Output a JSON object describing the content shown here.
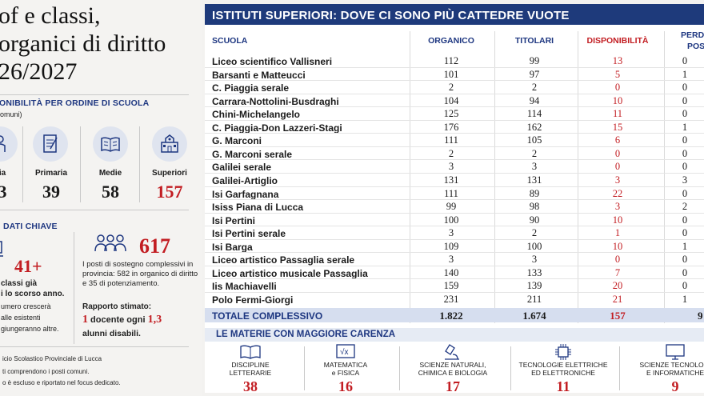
{
  "left": {
    "title_lines": [
      "of e classi,",
      " organici di diritto",
      "26/2027"
    ],
    "disp_header": "ONIBILITÀ PER ORDINE DI SCUOLA",
    "disp_sub": "omuni)",
    "categories": [
      {
        "label": "ia",
        "value": "3",
        "icon": "child-icon"
      },
      {
        "label": "Primaria",
        "value": "39",
        "icon": "notebook-icon"
      },
      {
        "label": "Medie",
        "value": "58",
        "icon": "book-icon"
      },
      {
        "label": "Superiori",
        "value": "157",
        "icon": "building-icon"
      }
    ],
    "key_header": "DATI CHIAVE",
    "key_value": "41+",
    "key_text_lines": [
      "classi già",
      "i lo scorso anno.",
      "umero crescerà",
      "alle esistenti",
      "giungeranno altre."
    ],
    "support_value": "617",
    "support_text": "I posti di sostegno complessivi in provincia: 582 in organico di diritto e 35 di potenziamento.",
    "ratio_title": "Rapporto stimato:",
    "ratio_a": "1",
    "ratio_mid": " docente ogni ",
    "ratio_b": "1,3",
    "ratio_end": "alunni disabili.",
    "footnote1": "icio Scolastico Provinciale di Lucca",
    "footnote2": "ti comprendono i posti comuni.",
    "footnote3": "o è escluso e riportato nel focus dedicato."
  },
  "right": {
    "header": "ISTITUTI SUPERIORI: DOVE CI SONO PIÙ CATTEDRE VUOTE",
    "columns": [
      "SCUOLA",
      "ORGANICO",
      "TITOLARI",
      "DISPONIBILITÀ",
      "PERD",
      "POS"
    ],
    "rows": [
      [
        "Liceo scientifico Vallisneri",
        "112",
        "99",
        "13",
        "0"
      ],
      [
        "Barsanti e Matteucci",
        "101",
        "97",
        "5",
        "1"
      ],
      [
        "C. Piaggia serale",
        "2",
        "2",
        "0",
        "0"
      ],
      [
        "Carrara-Nottolini-Busdraghi",
        "104",
        "94",
        "10",
        "0"
      ],
      [
        "Chini-Michelangelo",
        "125",
        "114",
        "11",
        "0"
      ],
      [
        "C. Piaggia-Don Lazzeri-Stagi",
        "176",
        "162",
        "15",
        "1"
      ],
      [
        "G. Marconi",
        "111",
        "105",
        "6",
        "0"
      ],
      [
        "G. Marconi serale",
        "2",
        "2",
        "0",
        "0"
      ],
      [
        "Galilei serale",
        "3",
        "3",
        "0",
        "0"
      ],
      [
        "Galilei-Artiglio",
        "131",
        "131",
        "3",
        "3"
      ],
      [
        "Isi Garfagnana",
        "111",
        "89",
        "22",
        "0"
      ],
      [
        "Isiss Piana di Lucca",
        "99",
        "98",
        "3",
        "2"
      ],
      [
        "Isi Pertini",
        "100",
        "90",
        "10",
        "0"
      ],
      [
        "Isi Pertini serale",
        "3",
        "2",
        "1",
        "0"
      ],
      [
        "Isi Barga",
        "109",
        "100",
        "10",
        "1"
      ],
      [
        "Liceo artistico Passaglia serale",
        "3",
        "3",
        "0",
        "0"
      ],
      [
        "Liceo artistico musicale Passaglia",
        "140",
        "133",
        "7",
        "0"
      ],
      [
        "Iis Machiavelli",
        "159",
        "139",
        "20",
        "0"
      ],
      [
        "Polo Fermi-Giorgi",
        "231",
        "211",
        "21",
        "1"
      ]
    ],
    "total": [
      "TOTALE COMPLESSIVO",
      "1.822",
      "1.674",
      "157",
      "9"
    ],
    "materie_header": "LE MATERIE CON MAGGIORE CARENZA",
    "materie": [
      {
        "label": "DISCIPLINE\nLETTERARIE",
        "value": "38",
        "icon": "book-icon"
      },
      {
        "label": "MATEMATICA\ne FISICA",
        "value": "16",
        "icon": "math-icon"
      },
      {
        "label": "SCIENZE NATURALI,\nCHIMICA E BIOLOGIA",
        "value": "17",
        "icon": "microscope-icon"
      },
      {
        "label": "TECNOLOGIE ELETTRICHE\nED ELETTRONICHE",
        "value": "11",
        "icon": "chip-icon"
      },
      {
        "label": "SCIENZE TECNOLOGI\nE INFORMATICHE",
        "value": "9",
        "icon": "monitor-icon"
      }
    ]
  }
}
